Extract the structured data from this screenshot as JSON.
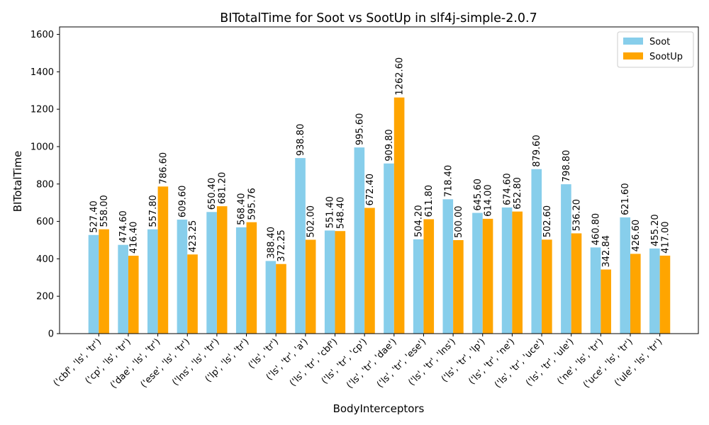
{
  "chart_data": {
    "type": "bar",
    "title": "BITotalTime for Soot vs SootUp in slf4j-simple-2.0.7",
    "xlabel": "BodyInterceptors",
    "ylabel": "BITotalTime",
    "ylim": [
      0,
      1640
    ],
    "yticks": [
      0,
      200,
      400,
      600,
      800,
      1000,
      1200,
      1400,
      1600
    ],
    "legend_position": "top-right",
    "grid": false,
    "categories": [
      "('cbf', 'ls', 'tr')",
      "('cp', 'ls', 'tr')",
      "('dae', 'ls', 'tr')",
      "('ese', 'ls', 'tr')",
      "('lns', 'ls', 'tr')",
      "('lp', 'ls', 'tr')",
      "('ls', 'tr')",
      "('ls', 'tr', 'a')",
      "('ls', 'tr', 'cbf')",
      "('ls', 'tr', 'cp')",
      "('ls', 'tr', 'dae')",
      "('ls', 'tr', 'ese')",
      "('ls', 'tr', 'lns')",
      "('ls', 'tr', 'lp')",
      "('ls', 'tr', 'ne')",
      "('ls', 'tr', 'uce')",
      "('ls', 'tr', 'ule')",
      "('ne', 'ls', 'tr')",
      "('uce', 'ls', 'tr')",
      "('ule', 'ls', 'tr')"
    ],
    "series": [
      {
        "name": "Soot",
        "color": "#87ceeb",
        "values": [
          527.4,
          474.6,
          557.8,
          609.6,
          650.4,
          568.4,
          388.4,
          938.8,
          551.4,
          995.6,
          909.8,
          504.2,
          718.4,
          645.6,
          674.6,
          879.6,
          798.8,
          460.8,
          621.6,
          455.2
        ],
        "labels": [
          "527.40",
          "474.60",
          "557.80",
          "609.60",
          "650.40",
          "568.40",
          "388.40",
          "938.80",
          "551.40",
          "995.60",
          "909.80",
          "504.20",
          "718.40",
          "645.60",
          "674.60",
          "879.60",
          "798.80",
          "460.80",
          "621.60",
          "455.20"
        ]
      },
      {
        "name": "SootUp",
        "color": "#ffa500",
        "values": [
          558.0,
          416.4,
          786.6,
          423.25,
          681.2,
          595.76,
          372.25,
          502.0,
          548.4,
          672.4,
          1262.6,
          611.8,
          500.0,
          614.0,
          652.8,
          502.6,
          536.2,
          342.84,
          426.6,
          417.0
        ],
        "labels": [
          "558.00",
          "416.40",
          "786.60",
          "423.25",
          "681.20",
          "595.76",
          "372.25",
          "502.00",
          "548.40",
          "672.40",
          "1262.60",
          "611.80",
          "500.00",
          "614.00",
          "652.80",
          "502.60",
          "536.20",
          "342.84",
          "426.60",
          "417.00"
        ]
      }
    ]
  }
}
